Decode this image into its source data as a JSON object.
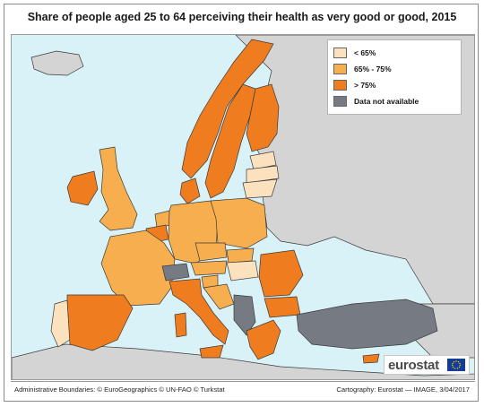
{
  "title": "Share of people aged 25 to 64 perceiving their health as very good or good, 2015",
  "legend": {
    "items": [
      {
        "label": "< 65%",
        "color": "#fbe1bd"
      },
      {
        "label": "65% - 75%",
        "color": "#f6ae4e"
      },
      {
        "label": "> 75%",
        "color": "#ef7c1f"
      },
      {
        "label": "Data not available",
        "color": "#767b83"
      }
    ]
  },
  "colors": {
    "sea": "#d9f2f7",
    "non_eu": "#d4d4d4",
    "low": "#fbe1bd",
    "mid": "#f6ae4e",
    "high": "#ef7c1f",
    "na": "#767b83",
    "border": "#3a3a3a"
  },
  "logo": {
    "text": "eurostat",
    "icon": "eu-flag-icon"
  },
  "footer": {
    "left": "Administrative Boundaries: © EuroGeographics © UN-FAO © Turkstat",
    "right": "Cartography: Eurostat — IMAGE, 3/04/2017"
  }
}
